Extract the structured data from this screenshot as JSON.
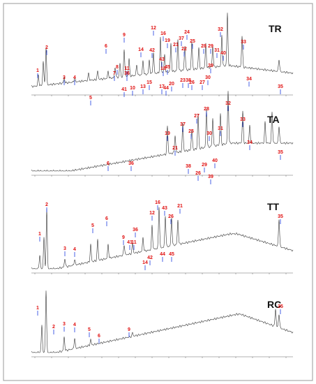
{
  "panels": [
    {
      "label": "TR",
      "peaks": [
        "1",
        "2",
        "3",
        "4",
        "5",
        "6",
        "7",
        "8",
        "9",
        "10",
        "11",
        "12",
        "13",
        "14",
        "15",
        "16",
        "17",
        "18",
        "19",
        "20",
        "21",
        "22",
        "23",
        "24",
        "25",
        "26",
        "27",
        "28",
        "29",
        "30",
        "31",
        "32",
        "33",
        "34",
        "35",
        "36",
        "37",
        "38",
        "39",
        "40",
        "41",
        "42",
        "43",
        "44",
        "45"
      ]
    },
    {
      "label": "TA",
      "peaks": [
        "6",
        "36",
        "19",
        "21",
        "37",
        "25",
        "27",
        "28",
        "38",
        "26",
        "29",
        "30",
        "39",
        "40",
        "31",
        "32",
        "33",
        "34",
        "35"
      ]
    },
    {
      "label": "TT",
      "peaks": [
        "1",
        "2",
        "3",
        "4",
        "5",
        "6",
        "9",
        "41",
        "11",
        "36",
        "12",
        "42",
        "14",
        "16",
        "43",
        "44",
        "26",
        "21",
        "45",
        "35"
      ]
    },
    {
      "label": "RC",
      "peaks": [
        "1",
        "2",
        "3",
        "4",
        "5",
        "6",
        "9",
        "35"
      ]
    }
  ]
}
